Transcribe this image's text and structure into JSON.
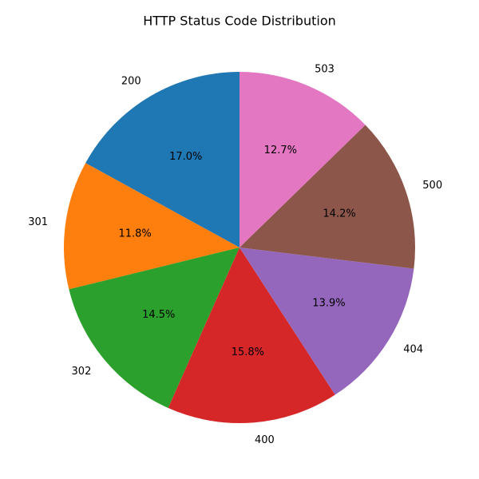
{
  "chart_data": {
    "type": "pie",
    "title": "HTTP Status Code Distribution",
    "categories": [
      "200",
      "301",
      "302",
      "400",
      "404",
      "500",
      "503"
    ],
    "values": [
      17.0,
      11.8,
      14.5,
      15.8,
      13.9,
      14.2,
      12.7
    ],
    "percent_labels": [
      "17.0%",
      "11.8%",
      "14.5%",
      "15.8%",
      "13.9%",
      "14.2%",
      "12.7%"
    ],
    "colors": [
      "#1f77b4",
      "#ff7f0e",
      "#2ca02c",
      "#d62728",
      "#9467bd",
      "#8c564b",
      "#e377c2"
    ],
    "start_angle_deg": 90,
    "direction": "counterclockwise",
    "legend": "none"
  }
}
